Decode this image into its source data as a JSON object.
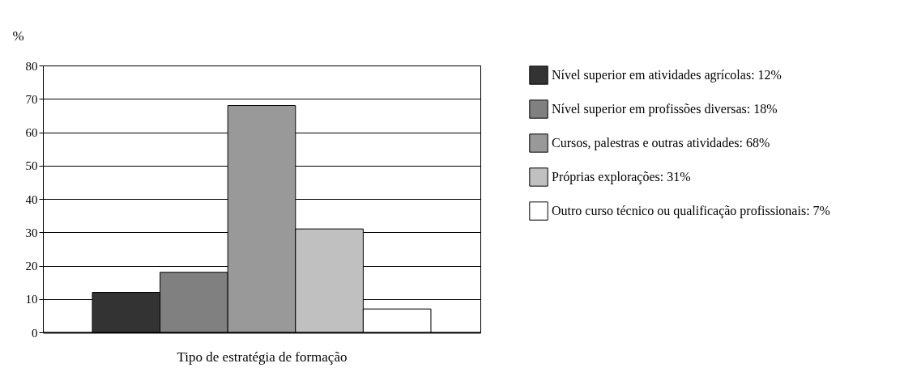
{
  "chart_data": {
    "type": "bar",
    "xlabel": "Tipo de estratégia de formação",
    "ylabel": "%",
    "categories": [
      null,
      null,
      null,
      null,
      null
    ],
    "series": [
      {
        "name": "Nível superior em atividades agrícolas: 12%",
        "color": "#333333",
        "values": [
          12,
          null,
          null,
          null,
          null
        ]
      },
      {
        "name": "Nível superior em profissões diversas: 18%",
        "color": "#808080",
        "values": [
          null,
          18,
          null,
          null,
          null
        ]
      },
      {
        "name": "Cursos, palestras e outras atividades: 68%",
        "color": "#999999",
        "values": [
          null,
          null,
          68,
          null,
          null
        ]
      },
      {
        "name": "Próprias explorações: 31%",
        "color": "#c0c0c0",
        "values": [
          null,
          null,
          null,
          31,
          null
        ]
      },
      {
        "name": "Outro curso técnico ou qualificação profissionais: 7%",
        "color": "#ffffff",
        "values": [
          null,
          null,
          null,
          null,
          7
        ]
      }
    ],
    "ylim": [
      0,
      80
    ],
    "yticks": [
      0,
      10,
      20,
      30,
      40,
      50,
      60,
      70,
      80
    ],
    "grid": "y",
    "legend": "right"
  }
}
